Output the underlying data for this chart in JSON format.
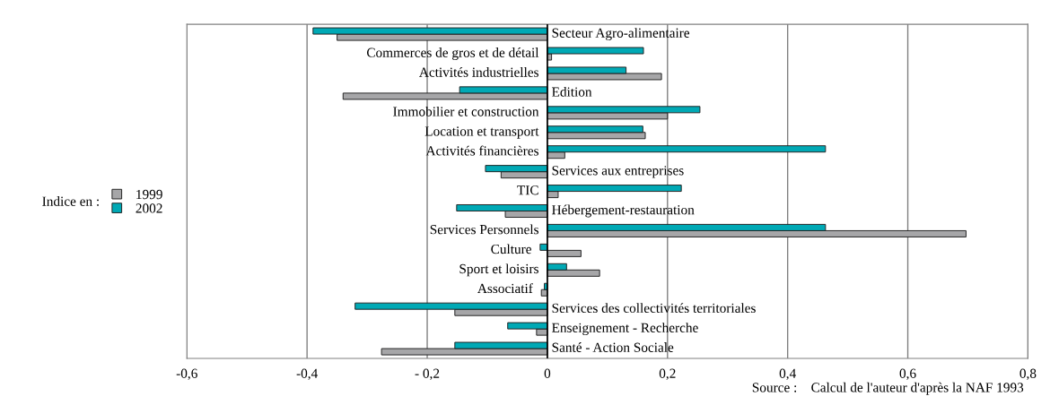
{
  "chart_data": {
    "type": "bar",
    "orientation": "horizontal",
    "categories": [
      "Secteur Agro-alimentaire",
      "Commerces de gros et de détail",
      "Activités industrielles",
      "Edition",
      "Immobilier et construction",
      "Location et transport",
      "Activités financières",
      "Services aux entreprises",
      "TIC",
      "Hébergement-restauration",
      "Services Personnels",
      "Culture",
      "Sport et loisirs",
      "Associatif",
      "Services des collectivités territoriales",
      "Enseignement - Recherche",
      "Santé - Action Sociale"
    ],
    "series": [
      {
        "name": "1999",
        "color": "#a6a6a8",
        "values": [
          -0.35,
          0.007,
          0.19,
          -0.34,
          0.2,
          0.163,
          0.029,
          -0.077,
          0.018,
          -0.07,
          0.697,
          0.056,
          0.087,
          -0.01,
          -0.154,
          -0.018,
          -0.276
        ]
      },
      {
        "name": "2002",
        "color": "#00a9b5",
        "values": [
          -0.39,
          0.16,
          0.131,
          -0.146,
          0.254,
          0.159,
          0.463,
          -0.103,
          0.223,
          -0.151,
          0.463,
          -0.012,
          0.032,
          -0.005,
          -0.32,
          -0.066,
          -0.154
        ]
      }
    ],
    "xlim": [
      -0.6,
      0.8
    ],
    "xticks": [
      {
        "value": -0.6,
        "label": "-0,6"
      },
      {
        "value": -0.4,
        "label": "-0,4"
      },
      {
        "value": -0.2,
        "label": "- 0,2"
      },
      0,
      {
        "value": 0.2,
        "label": "0,2"
      },
      {
        "value": 0.4,
        "label": "0,4"
      },
      {
        "value": 0.6,
        "label": "0,6"
      },
      {
        "value": 0.8,
        "label": "0,8"
      }
    ],
    "grid": "x",
    "legend": "left",
    "legend_title": "Indice en :",
    "annotations": [
      "Source :    Calcul de l'auteur d'après la NAF 1993"
    ]
  }
}
